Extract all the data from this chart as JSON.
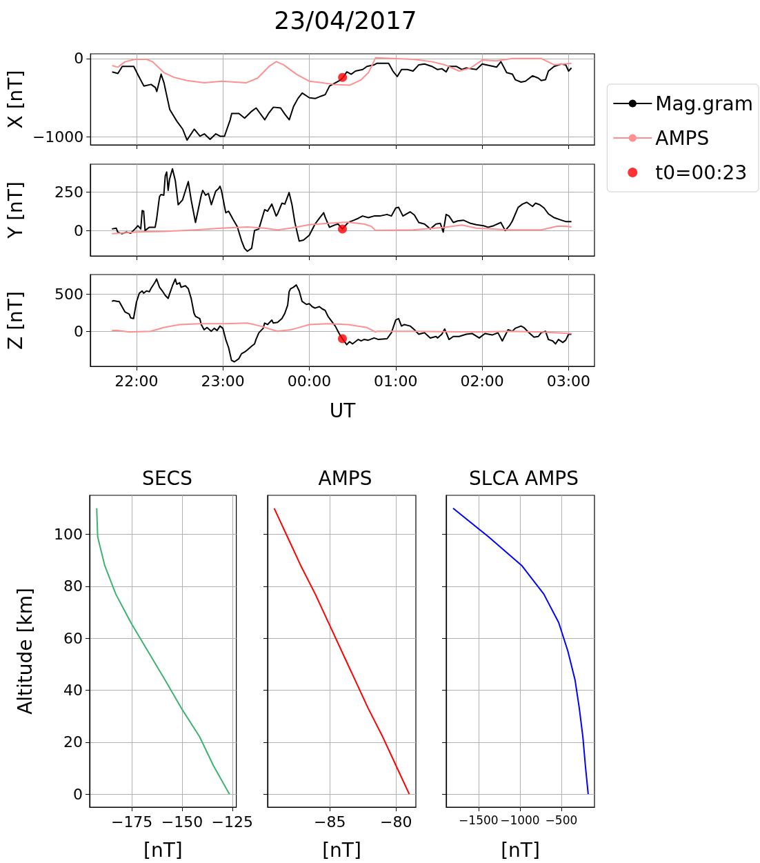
{
  "chart_data": [
    {
      "type": "line",
      "title": "23/04/2017",
      "ylabel": "X [nT]",
      "xlim": [
        "2017-04-22T21:28",
        "2017-04-23T03:18"
      ],
      "ylim": [
        -1100,
        60
      ],
      "xticks": [
        {
          "value": "2017-04-22T22:00",
          "label": null
        },
        {
          "value": "2017-04-22T23:00",
          "label": null
        },
        {
          "value": "2017-04-23T00:00",
          "label": null
        },
        {
          "value": "2017-04-23T01:00",
          "label": null
        },
        {
          "value": "2017-04-23T02:00",
          "label": null
        },
        {
          "value": "2017-04-23T03:00",
          "label": null
        }
      ],
      "yticks": [
        {
          "value": -1000,
          "label": "−1000"
        },
        0
      ],
      "tick_labels": "y",
      "grid": true,
      "legend": "right",
      "series": [
        {
          "name": "Mag.gram",
          "color": "#000000",
          "x": [
            "2017-04-22T21:43",
            "2017-04-22T21:47",
            "2017-04-22T21:50",
            "2017-04-22T21:55",
            "2017-04-22T21:58",
            "2017-04-22T22:01",
            "2017-04-22T22:05",
            "2017-04-22T22:10",
            "2017-04-22T22:13",
            "2017-04-22T22:14",
            "2017-04-22T22:17",
            "2017-04-22T22:19",
            "2017-04-22T22:23",
            "2017-04-22T22:28",
            "2017-04-22T22:32",
            "2017-04-22T22:35",
            "2017-04-22T22:40",
            "2017-04-22T22:44",
            "2017-04-22T22:47",
            "2017-04-22T22:51",
            "2017-04-22T22:55",
            "2017-04-22T22:58",
            "2017-04-22T23:01",
            "2017-04-22T23:05",
            "2017-04-22T23:06",
            "2017-04-22T23:11",
            "2017-04-22T23:15",
            "2017-04-22T23:20",
            "2017-04-22T23:23",
            "2017-04-22T23:29",
            "2017-04-22T23:32",
            "2017-04-22T23:35",
            "2017-04-22T23:40",
            "2017-04-22T23:43",
            "2017-04-22T23:46",
            "2017-04-22T23:49",
            "2017-04-22T23:52",
            "2017-04-22T23:55",
            "2017-04-23T00:00",
            "2017-04-23T00:04",
            "2017-04-23T00:08",
            "2017-04-23T00:11",
            "2017-04-23T00:14",
            "2017-04-23T00:18",
            "2017-04-23T00:21",
            "2017-04-23T00:23",
            "2017-04-23T00:26",
            "2017-04-23T00:29",
            "2017-04-23T00:32",
            "2017-04-23T00:37",
            "2017-04-23T00:40",
            "2017-04-23T00:45",
            "2017-04-23T00:47",
            "2017-04-23T00:55",
            "2017-04-23T00:58",
            "2017-04-23T01:01",
            "2017-04-23T01:04",
            "2017-04-23T01:08",
            "2017-04-23T01:12",
            "2017-04-23T01:16",
            "2017-04-23T01:20",
            "2017-04-23T01:25",
            "2017-04-23T01:29",
            "2017-04-23T01:32",
            "2017-04-23T01:35",
            "2017-04-23T01:37",
            "2017-04-23T01:42",
            "2017-04-23T01:46",
            "2017-04-23T01:49",
            "2017-04-23T01:52",
            "2017-04-23T01:56",
            "2017-04-23T02:00",
            "2017-04-23T02:05",
            "2017-04-23T02:10",
            "2017-04-23T02:13",
            "2017-04-23T02:17",
            "2017-04-23T02:21",
            "2017-04-23T02:23",
            "2017-04-23T02:27",
            "2017-04-23T02:30",
            "2017-04-23T02:35",
            "2017-04-23T02:39",
            "2017-04-23T02:41",
            "2017-04-23T02:44",
            "2017-04-23T02:46",
            "2017-04-23T02:50",
            "2017-04-23T02:55",
            "2017-04-23T02:58",
            "2017-04-23T03:00",
            "2017-04-23T03:02"
          ],
          "values": [
            -170,
            -190,
            -100,
            -100,
            -100,
            -210,
            -350,
            -330,
            -370,
            -420,
            -200,
            -310,
            -650,
            -800,
            -900,
            -1040,
            -900,
            -990,
            -960,
            -1030,
            -960,
            -990,
            -990,
            -780,
            -700,
            -700,
            -760,
            -670,
            -630,
            -780,
            -690,
            -620,
            -630,
            -710,
            -780,
            -610,
            -510,
            -440,
            -500,
            -510,
            -480,
            -460,
            -350,
            -310,
            -280,
            -250,
            -170,
            -200,
            -160,
            -140,
            -100,
            -80,
            -60,
            -60,
            -160,
            -230,
            -140,
            -140,
            -160,
            -80,
            -70,
            -100,
            -140,
            -130,
            -170,
            -100,
            -100,
            -140,
            -120,
            -130,
            -140,
            -70,
            -90,
            -110,
            -40,
            -180,
            -200,
            -270,
            -300,
            -290,
            -220,
            -250,
            -280,
            -270,
            -160,
            -100,
            -70,
            -80,
            -160,
            -120
          ]
        },
        {
          "name": "AMPS",
          "color": "#ff9090",
          "x": [
            "2017-04-22T21:43",
            "2017-04-22T21:47",
            "2017-04-22T21:52",
            "2017-04-22T21:59",
            "2017-04-22T22:07",
            "2017-04-22T22:11",
            "2017-04-22T22:19",
            "2017-04-22T22:26",
            "2017-04-22T22:35",
            "2017-04-22T22:47",
            "2017-04-22T22:59",
            "2017-04-22T23:16",
            "2017-04-22T23:24",
            "2017-04-22T23:32",
            "2017-04-22T23:37",
            "2017-04-22T23:42",
            "2017-04-22T23:51",
            "2017-04-23T00:00",
            "2017-04-23T00:09",
            "2017-04-23T00:17",
            "2017-04-23T00:28",
            "2017-04-23T00:36",
            "2017-04-23T00:41",
            "2017-04-23T00:46",
            "2017-04-23T00:58",
            "2017-04-23T01:12",
            "2017-04-23T01:25",
            "2017-04-23T01:34",
            "2017-04-23T01:44",
            "2017-04-23T01:52",
            "2017-04-23T02:00",
            "2017-04-23T02:10",
            "2017-04-23T02:21",
            "2017-04-23T02:41",
            "2017-04-23T02:50",
            "2017-04-23T03:02"
          ],
          "values": [
            -90,
            -110,
            -40,
            -10,
            -10,
            -40,
            -180,
            -240,
            -280,
            -310,
            -290,
            -310,
            -250,
            -100,
            -40,
            -80,
            -200,
            -290,
            -310,
            -330,
            -340,
            -270,
            -180,
            10,
            0,
            -10,
            -40,
            -80,
            -160,
            -120,
            -20,
            -30,
            0,
            0,
            -80,
            -60
          ]
        },
        {
          "name": "t0=00:23",
          "type": "scatter",
          "marker": "circle",
          "color": "#ff0000",
          "x": [
            "2017-04-23T00:23"
          ],
          "values": [
            -240
          ]
        }
      ]
    },
    {
      "type": "line",
      "ylabel": "Y [nT]",
      "xlim": [
        "2017-04-22T21:28",
        "2017-04-23T03:18"
      ],
      "ylim": [
        -165,
        430
      ],
      "xticks": [
        {
          "value": "2017-04-22T22:00",
          "label": null
        },
        {
          "value": "2017-04-22T23:00",
          "label": null
        },
        {
          "value": "2017-04-23T00:00",
          "label": null
        },
        {
          "value": "2017-04-23T01:00",
          "label": null
        },
        {
          "value": "2017-04-23T02:00",
          "label": null
        },
        {
          "value": "2017-04-23T03:00",
          "label": null
        }
      ],
      "yticks": [
        0,
        250
      ],
      "tick_labels": "y",
      "grid": true,
      "series": [
        {
          "color": "#000000",
          "x": [
            "2017-04-22T21:43",
            "2017-04-22T21:46",
            "2017-04-22T21:47",
            "2017-04-22T21:50",
            "2017-04-22T21:53",
            "2017-04-22T21:56",
            "2017-04-22T21:59",
            "2017-04-22T22:01",
            "2017-04-22T22:03",
            "2017-04-22T22:04",
            "2017-04-22T22:05",
            "2017-04-22T22:06",
            "2017-04-22T22:09",
            "2017-04-22T22:13",
            "2017-04-22T22:14",
            "2017-04-22T22:16",
            "2017-04-22T22:17",
            "2017-04-22T22:19",
            "2017-04-22T22:20",
            "2017-04-22T22:21",
            "2017-04-22T22:22",
            "2017-04-22T22:23",
            "2017-04-22T22:25",
            "2017-04-22T22:27",
            "2017-04-22T22:29",
            "2017-04-22T22:32",
            "2017-04-22T22:36",
            "2017-04-22T22:38",
            "2017-04-22T22:41",
            "2017-04-22T22:45",
            "2017-04-22T22:46",
            "2017-04-22T22:48",
            "2017-04-22T22:50",
            "2017-04-22T22:52",
            "2017-04-22T22:55",
            "2017-04-22T22:57",
            "2017-04-22T22:58",
            "2017-04-22T22:59",
            "2017-04-22T23:02",
            "2017-04-22T23:04",
            "2017-04-22T23:05",
            "2017-04-22T23:07",
            "2017-04-22T23:10",
            "2017-04-22T23:13",
            "2017-04-22T23:15",
            "2017-04-22T23:17",
            "2017-04-22T23:20",
            "2017-04-22T23:22",
            "2017-04-22T23:25",
            "2017-04-22T23:29",
            "2017-04-22T23:31",
            "2017-04-22T23:34",
            "2017-04-22T23:37",
            "2017-04-22T23:38",
            "2017-04-22T23:41",
            "2017-04-22T23:43",
            "2017-04-22T23:46",
            "2017-04-22T23:48",
            "2017-04-22T23:50",
            "2017-04-22T23:53",
            "2017-04-22T23:56",
            "2017-04-23T00:00",
            "2017-04-23T00:04",
            "2017-04-23T00:07",
            "2017-04-23T00:10",
            "2017-04-23T00:11",
            "2017-04-23T00:14",
            "2017-04-23T00:18",
            "2017-04-23T00:20",
            "2017-04-23T00:23",
            "2017-04-23T00:27",
            "2017-04-23T00:31",
            "2017-04-23T00:34",
            "2017-04-23T00:37",
            "2017-04-23T00:41",
            "2017-04-23T00:45",
            "2017-04-23T00:49",
            "2017-04-23T00:54",
            "2017-04-23T00:57",
            "2017-04-23T01:00",
            "2017-04-23T01:02",
            "2017-04-23T01:05",
            "2017-04-23T01:10",
            "2017-04-23T01:13",
            "2017-04-23T01:16",
            "2017-04-23T01:20",
            "2017-04-23T01:24",
            "2017-04-23T01:28",
            "2017-04-23T01:31",
            "2017-04-23T01:33",
            "2017-04-23T01:35",
            "2017-04-23T01:37",
            "2017-04-23T01:40",
            "2017-04-23T01:43",
            "2017-04-23T01:47",
            "2017-04-23T01:52",
            "2017-04-23T01:56",
            "2017-04-23T02:01",
            "2017-04-23T02:04",
            "2017-04-23T02:08",
            "2017-04-23T02:13",
            "2017-04-23T02:16",
            "2017-04-23T02:19",
            "2017-04-23T02:21",
            "2017-04-23T02:25",
            "2017-04-23T02:28",
            "2017-04-23T02:31",
            "2017-04-23T02:35",
            "2017-04-23T02:37",
            "2017-04-23T02:40",
            "2017-04-23T02:43",
            "2017-04-23T02:46",
            "2017-04-23T02:50",
            "2017-04-23T02:55",
            "2017-04-23T02:58",
            "2017-04-23T03:02"
          ],
          "values": [
            10,
            15,
            -10,
            -21,
            -10,
            -17,
            10,
            31,
            10,
            129,
            125,
            0,
            21,
            21,
            73,
            219,
            233,
            229,
            354,
            379,
            260,
            333,
            400,
            323,
            167,
            198,
            317,
            198,
            52,
            229,
            260,
            229,
            240,
            167,
            254,
            271,
            287,
            260,
            115,
            125,
            108,
            73,
            25,
            -67,
            -115,
            -135,
            -115,
            0,
            10,
            135,
            125,
            171,
            94,
            108,
            177,
            171,
            246,
            167,
            52,
            -69,
            -62,
            -31,
            42,
            79,
            115,
            87,
            21,
            37,
            42,
            10,
            52,
            67,
            79,
            94,
            83,
            94,
            94,
            104,
            94,
            146,
            150,
            94,
            121,
            100,
            52,
            42,
            10,
            42,
            46,
            -10,
            104,
            94,
            52,
            62,
            67,
            46,
            37,
            31,
            21,
            31,
            52,
            0,
            31,
            62,
            150,
            171,
            183,
            156,
            177,
            167,
            146,
            108,
            83,
            67,
            58,
            58
          ]
        },
        {
          "color": "#ff9090",
          "x": [
            "2017-04-22T21:43",
            "2017-04-22T22:01",
            "2017-04-22T22:19",
            "2017-04-22T22:41",
            "2017-04-22T22:59",
            "2017-04-22T23:17",
            "2017-04-22T23:29",
            "2017-04-22T23:38",
            "2017-04-22T23:47",
            "2017-04-23T00:00",
            "2017-04-23T00:13",
            "2017-04-23T00:27",
            "2017-04-23T00:38",
            "2017-04-23T00:43",
            "2017-04-23T00:46",
            "2017-04-23T01:12",
            "2017-04-23T01:34",
            "2017-04-23T01:46",
            "2017-04-23T01:56",
            "2017-04-23T02:08",
            "2017-04-23T02:19",
            "2017-04-23T02:41",
            "2017-04-23T02:52",
            "2017-04-23T02:57",
            "2017-04-23T03:02"
          ],
          "values": [
            -21,
            -10,
            -6,
            4,
            15,
            23,
            15,
            4,
            15,
            37,
            46,
            54,
            42,
            27,
            0,
            4,
            21,
            35,
            15,
            10,
            4,
            4,
            27,
            29,
            23
          ]
        },
        {
          "type": "scatter",
          "marker": "circle",
          "color": "#ff0000",
          "x": [
            "2017-04-23T00:23"
          ],
          "values": [
            10
          ]
        }
      ]
    },
    {
      "type": "line",
      "ylabel": "Z [nT]",
      "xlabel": "UT",
      "xlim": [
        "2017-04-22T21:28",
        "2017-04-23T03:18"
      ],
      "ylim": [
        -470,
        760
      ],
      "xticks": [
        {
          "value": "2017-04-22T22:00",
          "label": "22:00"
        },
        {
          "value": "2017-04-22T23:00",
          "label": "23:00"
        },
        {
          "value": "2017-04-23T00:00",
          "label": "00:00"
        },
        {
          "value": "2017-04-23T01:00",
          "label": "01:00"
        },
        {
          "value": "2017-04-23T02:00",
          "label": "02:00"
        },
        {
          "value": "2017-04-23T03:00",
          "label": "03:00"
        }
      ],
      "yticks": [
        0,
        500
      ],
      "grid": true,
      "series": [
        {
          "color": "#000000",
          "x": [
            "2017-04-22T21:43",
            "2017-04-22T21:44",
            "2017-04-22T21:47",
            "2017-04-22T21:48",
            "2017-04-22T21:50",
            "2017-04-22T21:52",
            "2017-04-22T21:55",
            "2017-04-22T21:56",
            "2017-04-22T21:58",
            "2017-04-22T22:00",
            "2017-04-22T22:02",
            "2017-04-22T22:04",
            "2017-04-22T22:05",
            "2017-04-22T22:07",
            "2017-04-22T22:09",
            "2017-04-22T22:10",
            "2017-04-22T22:13",
            "2017-04-22T22:14",
            "2017-04-22T22:16",
            "2017-04-22T22:18",
            "2017-04-22T22:20",
            "2017-04-22T22:22",
            "2017-04-22T22:23",
            "2017-04-22T22:25",
            "2017-04-22T22:27",
            "2017-04-22T22:28",
            "2017-04-22T22:30",
            "2017-04-22T22:31",
            "2017-04-22T22:34",
            "2017-04-22T22:36",
            "2017-04-22T22:38",
            "2017-04-22T22:40",
            "2017-04-22T22:41",
            "2017-04-22T22:44",
            "2017-04-22T22:45",
            "2017-04-22T22:47",
            "2017-04-22T22:49",
            "2017-04-22T22:52",
            "2017-04-22T22:54",
            "2017-04-22T22:56",
            "2017-04-22T22:58",
            "2017-04-22T23:00",
            "2017-04-22T23:02",
            "2017-04-22T23:04",
            "2017-04-22T23:06",
            "2017-04-22T23:08",
            "2017-04-22T23:11",
            "2017-04-22T23:13",
            "2017-04-22T23:15",
            "2017-04-22T23:17",
            "2017-04-22T23:20",
            "2017-04-22T23:22",
            "2017-04-22T23:23",
            "2017-04-22T23:25",
            "2017-04-22T23:28",
            "2017-04-22T23:29",
            "2017-04-22T23:31",
            "2017-04-22T23:34",
            "2017-04-22T23:35",
            "2017-04-22T23:38",
            "2017-04-22T23:41",
            "2017-04-22T23:43",
            "2017-04-22T23:45",
            "2017-04-22T23:46",
            "2017-04-22T23:47",
            "2017-04-22T23:49",
            "2017-04-22T23:51",
            "2017-04-22T23:53",
            "2017-04-22T23:55",
            "2017-04-22T23:58",
            "2017-04-23T00:00",
            "2017-04-23T00:02",
            "2017-04-23T00:04",
            "2017-04-23T00:07",
            "2017-04-23T00:09",
            "2017-04-23T00:11",
            "2017-04-23T00:13",
            "2017-04-23T00:18",
            "2017-04-23T00:21",
            "2017-04-23T00:23",
            "2017-04-23T00:26",
            "2017-04-23T00:28",
            "2017-04-23T00:30",
            "2017-04-23T00:34",
            "2017-04-23T00:36",
            "2017-04-23T00:38",
            "2017-04-23T00:41",
            "2017-04-23T00:45",
            "2017-04-23T00:48",
            "2017-04-23T00:54",
            "2017-04-23T00:57",
            "2017-04-23T01:00",
            "2017-04-23T01:02",
            "2017-04-23T01:04",
            "2017-04-23T01:06",
            "2017-04-23T01:10",
            "2017-04-23T01:13",
            "2017-04-23T01:16",
            "2017-04-23T01:20",
            "2017-04-23T01:24",
            "2017-04-23T01:28",
            "2017-04-23T01:29",
            "2017-04-23T01:32",
            "2017-04-23T01:34",
            "2017-04-23T01:37",
            "2017-04-23T01:40",
            "2017-04-23T01:44",
            "2017-04-23T01:49",
            "2017-04-23T01:53",
            "2017-04-23T01:58",
            "2017-04-23T02:02",
            "2017-04-23T02:07",
            "2017-04-23T02:11",
            "2017-04-23T02:14",
            "2017-04-23T02:18",
            "2017-04-23T02:21",
            "2017-04-23T02:23",
            "2017-04-23T02:27",
            "2017-04-23T02:29",
            "2017-04-23T02:32",
            "2017-04-23T02:36",
            "2017-04-23T02:39",
            "2017-04-23T02:41",
            "2017-04-23T02:44",
            "2017-04-23T02:46",
            "2017-04-23T02:49",
            "2017-04-23T02:51",
            "2017-04-23T02:53",
            "2017-04-23T02:56",
            "2017-04-23T02:58",
            "2017-04-23T03:00",
            "2017-04-23T03:02"
          ],
          "values": [
            400,
            410,
            400,
            400,
            330,
            260,
            230,
            180,
            170,
            390,
            510,
            540,
            510,
            540,
            530,
            570,
            660,
            700,
            590,
            540,
            480,
            440,
            500,
            610,
            700,
            630,
            650,
            590,
            610,
            570,
            440,
            240,
            200,
            170,
            90,
            20,
            50,
            0,
            40,
            10,
            70,
            40,
            -110,
            -220,
            -390,
            -410,
            -370,
            -300,
            -280,
            -250,
            -200,
            -170,
            -110,
            -20,
            40,
            110,
            90,
            150,
            110,
            120,
            170,
            240,
            350,
            530,
            570,
            590,
            620,
            540,
            400,
            360,
            370,
            330,
            310,
            330,
            300,
            280,
            200,
            70,
            -40,
            -100,
            -180,
            -140,
            -170,
            -110,
            -130,
            -110,
            -120,
            -90,
            -110,
            -100,
            -20,
            150,
            170,
            70,
            90,
            70,
            20,
            -40,
            -20,
            -90,
            -70,
            -90,
            -40,
            30,
            -110,
            -70,
            -70,
            -40,
            -30,
            -90,
            -30,
            -50,
            -20,
            -130,
            20,
            0,
            40,
            70,
            50,
            -10,
            -80,
            -70,
            -20,
            0,
            -110,
            -130,
            -170,
            -110,
            -150,
            -120,
            -40,
            -40
          ]
        },
        {
          "color": "#ff9090",
          "x": [
            "2017-04-22T21:43",
            "2017-04-22T21:47",
            "2017-04-22T21:55",
            "2017-04-22T22:10",
            "2017-04-22T22:19",
            "2017-04-22T22:30",
            "2017-04-22T22:44",
            "2017-04-22T23:02",
            "2017-04-22T23:17",
            "2017-04-22T23:26",
            "2017-04-22T23:38",
            "2017-04-22T23:47",
            "2017-04-22T23:51",
            "2017-04-23T00:00",
            "2017-04-23T00:13",
            "2017-04-23T00:27",
            "2017-04-23T00:40",
            "2017-04-23T00:46",
            "2017-04-23T00:47",
            "2017-04-23T01:12",
            "2017-04-23T01:56",
            "2017-04-23T02:19",
            "2017-04-23T02:41",
            "2017-04-23T02:50",
            "2017-04-23T03:02"
          ],
          "values": [
            10,
            10,
            -10,
            0,
            50,
            90,
            100,
            100,
            110,
            70,
            0,
            20,
            40,
            90,
            100,
            90,
            50,
            -10,
            0,
            0,
            -10,
            0,
            -10,
            -20,
            -30
          ]
        },
        {
          "type": "scatter",
          "marker": "circle",
          "color": "#ff0000",
          "x": [
            "2017-04-23T00:23"
          ],
          "values": [
            -100
          ]
        }
      ]
    },
    {
      "type": "line",
      "title": "SECS",
      "xlabel": "[nT]",
      "ylabel": "Altitude [km]",
      "xlim": [
        -196,
        -123
      ],
      "ylim": [
        -5,
        115
      ],
      "xticks": [
        {
          "value": -175,
          "label": "−175"
        },
        {
          "value": -150,
          "label": "−150"
        },
        {
          "value": -125,
          "label": "−125"
        }
      ],
      "yticks": [
        0,
        20,
        40,
        60,
        80,
        100
      ],
      "grid": true,
      "series": [
        {
          "color": "#3cb371",
          "x": [
            -192.5,
            -192.0,
            -188.5,
            -183,
            -175.5,
            -167,
            -158.5,
            -150.3,
            -141.2,
            -134.4,
            -126.4
          ],
          "values": [
            110,
            99,
            88,
            77,
            66,
            55,
            44,
            33,
            22,
            11,
            0
          ]
        }
      ]
    },
    {
      "type": "line",
      "title": "AMPS",
      "xlabel": "[nT]",
      "xlim": [
        -89.7,
        -78.5
      ],
      "ylim": [
        -5,
        115
      ],
      "xticks": [
        {
          "value": -85,
          "label": "−85"
        },
        {
          "value": -80,
          "label": "−80"
        }
      ],
      "yticks": [
        0,
        20,
        40,
        60,
        80,
        100
      ],
      "tick_labels": "x",
      "grid": true,
      "series": [
        {
          "color": "#ff0000",
          "x": [
            -89.2,
            -88.2,
            -87.2,
            -86.1,
            -85.1,
            -84.1,
            -83.1,
            -82.1,
            -81.0,
            -80.0,
            -79.0
          ],
          "values": [
            110,
            99,
            88,
            77,
            66,
            55,
            44,
            33,
            22,
            11,
            0
          ]
        }
      ]
    },
    {
      "type": "line",
      "title": "SLCA AMPS",
      "xlabel": "[nT]",
      "xlim": [
        -1890,
        -100
      ],
      "ylim": [
        -5,
        115
      ],
      "xticks": [
        {
          "value": -1500,
          "label": "−1500"
        },
        {
          "value": -1000,
          "label": "−1000"
        },
        {
          "value": -500,
          "label": "−500"
        }
      ],
      "yticks": [
        0,
        20,
        40,
        60,
        80,
        100
      ],
      "tick_labels": "x",
      "grid": true,
      "series": [
        {
          "color": "#0000ff",
          "x": [
            -1807,
            -1378,
            -979,
            -712,
            -532,
            -421,
            -335,
            -283,
            -240,
            -210,
            -176
          ],
          "values": [
            110,
            99,
            88,
            77,
            66,
            55,
            44,
            33,
            22,
            11,
            0
          ]
        }
      ]
    }
  ]
}
